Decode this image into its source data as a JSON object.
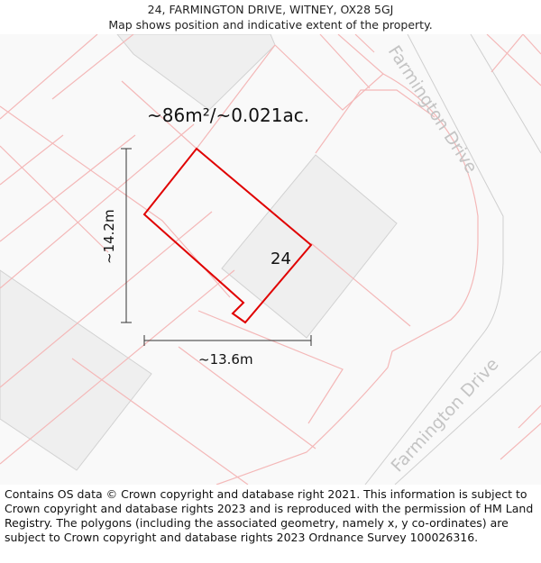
{
  "header": {
    "title": "24, FARMINGTON DRIVE, WITNEY, OX28 5GJ",
    "subtitle": "Map shows position and indicative extent of the property."
  },
  "map": {
    "area_label": "~86m²/~0.021ac.",
    "house_number": "24",
    "height_label": "~14.2m",
    "width_label": "~13.6m",
    "road_label_1": "Farmington Drive",
    "road_label_2": "Farmington Drive",
    "colors": {
      "plot_outline": "#e00000",
      "parcel_lines": "#f4b8b8",
      "buildings": "#f1f1f1",
      "road_edges": "#c8c8c8",
      "road_text": "#c4c4c4"
    }
  },
  "footer": {
    "copyright": "Contains OS data © Crown copyright and database right 2021. This information is subject to Crown copyright and database rights 2023 and is reproduced with the permission of HM Land Registry. The polygons (including the associated geometry, namely x, y co-ordinates) are subject to Crown copyright and database rights 2023 Ordnance Survey 100026316."
  }
}
